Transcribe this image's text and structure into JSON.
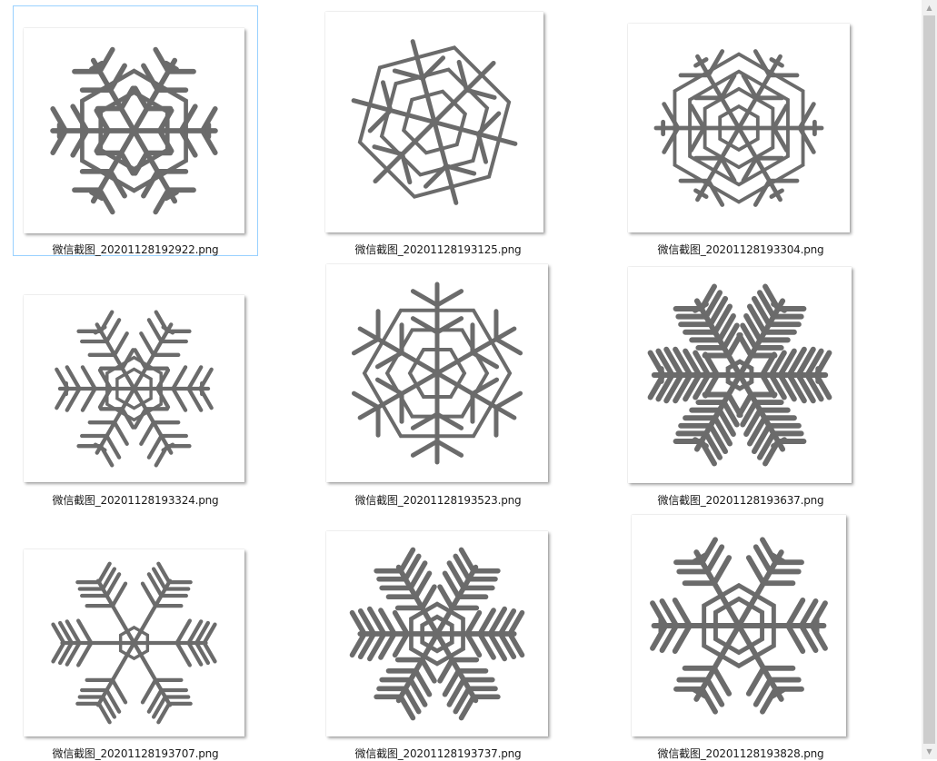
{
  "files": [
    {
      "name": "微信截图_20201128192922.png",
      "selected": true
    },
    {
      "name": "微信截图_20201128193125.png",
      "selected": false
    },
    {
      "name": "微信截图_20201128193304.png",
      "selected": false
    },
    {
      "name": "微信截图_20201128193324.png",
      "selected": false
    },
    {
      "name": "微信截图_20201128193523.png",
      "selected": false
    },
    {
      "name": "微信截图_20201128193637.png",
      "selected": false
    },
    {
      "name": "微信截图_20201128193707.png",
      "selected": false
    },
    {
      "name": "微信截图_20201128193737.png",
      "selected": false
    },
    {
      "name": "微信截图_20201128193828.png",
      "selected": false
    }
  ],
  "icons": {
    "scroll_up": "scroll-up-arrow-icon",
    "scroll_down": "scroll-down-arrow-icon"
  }
}
